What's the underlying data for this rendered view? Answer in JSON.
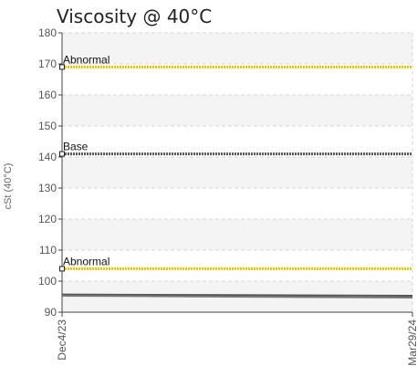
{
  "chart_data": {
    "type": "line",
    "title": "Viscosity @ 40°C",
    "ylabel": "cSt (40°C)",
    "xlabel": "",
    "ylim": [
      90,
      180
    ],
    "yticks": [
      90,
      100,
      110,
      120,
      130,
      140,
      150,
      160,
      170,
      180
    ],
    "x_categories": [
      "Dec4/23",
      "Mar29/24"
    ],
    "grid": true,
    "reference_lines": [
      {
        "label": "Abnormal",
        "value": 169,
        "color": "#f2c200"
      },
      {
        "label": "Base",
        "value": 141,
        "color": "#555555"
      },
      {
        "label": "Abnormal",
        "value": 104,
        "color": "#f2c200"
      }
    ],
    "series": [
      {
        "color": "#555555",
        "x": [
          "Dec4/23",
          "Mar29/24"
        ],
        "values": [
          95.7,
          95.3
        ]
      },
      {
        "color": "#777777",
        "x": [
          "Dec4/23",
          "Mar29/24"
        ],
        "values": [
          95.3,
          94.7
        ]
      }
    ]
  }
}
